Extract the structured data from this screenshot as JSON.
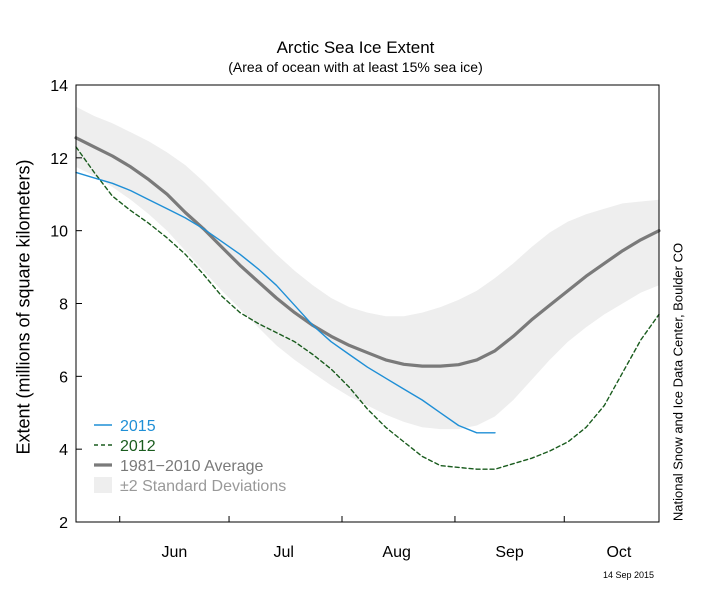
{
  "chart_data": {
    "type": "line",
    "title": "Arctic Sea Ice Extent",
    "subtitle": "(Area of ocean with at least 15% sea ice)",
    "ylabel": "Extent (millions of square kilometers)",
    "xlabel": "",
    "ylim": [
      2,
      14
    ],
    "yticks": [
      2,
      4,
      6,
      8,
      10,
      12,
      14
    ],
    "x_unit": "day of year",
    "xlim": [
      140,
      300
    ],
    "month_labels": [
      {
        "label": "Jun",
        "day": 167
      },
      {
        "label": "Jul",
        "day": 197
      },
      {
        "label": "Aug",
        "day": 228
      },
      {
        "label": "Sep",
        "day": 259
      },
      {
        "label": "Oct",
        "day": 289
      }
    ],
    "month_boundaries": [
      152,
      182,
      213,
      244,
      274
    ],
    "grid": false,
    "legend_position": "bottom-left",
    "series": [
      {
        "name": "2015",
        "style": "solid",
        "color": "#1f8fd6",
        "x": [
          140,
          145,
          150,
          155,
          160,
          165,
          170,
          175,
          180,
          185,
          190,
          195,
          200,
          205,
          210,
          215,
          220,
          225,
          230,
          235,
          240,
          245,
          250,
          252,
          255
        ],
        "y": [
          11.6,
          11.45,
          11.3,
          11.1,
          10.85,
          10.6,
          10.35,
          10.05,
          9.7,
          9.35,
          8.95,
          8.5,
          7.95,
          7.4,
          6.95,
          6.6,
          6.25,
          5.95,
          5.65,
          5.35,
          5.0,
          4.65,
          4.45,
          4.45,
          4.45
        ]
      },
      {
        "name": "2012",
        "style": "dashed",
        "color": "#1a5c1e",
        "x": [
          140,
          145,
          150,
          155,
          160,
          165,
          170,
          175,
          180,
          185,
          190,
          195,
          200,
          205,
          210,
          215,
          220,
          225,
          230,
          235,
          240,
          245,
          250,
          255,
          260,
          265,
          270,
          275,
          280,
          285,
          290,
          295,
          300
        ],
        "y": [
          12.3,
          11.6,
          10.95,
          10.55,
          10.2,
          9.8,
          9.35,
          8.8,
          8.2,
          7.75,
          7.45,
          7.2,
          6.95,
          6.6,
          6.2,
          5.7,
          5.1,
          4.6,
          4.2,
          3.8,
          3.55,
          3.5,
          3.45,
          3.45,
          3.6,
          3.75,
          3.95,
          4.2,
          4.6,
          5.2,
          6.1,
          7.0,
          7.7
        ]
      },
      {
        "name": "1981−2010 Average",
        "style": "solid",
        "color": "#7a7a7a",
        "x": [
          140,
          145,
          150,
          155,
          160,
          165,
          170,
          175,
          180,
          185,
          190,
          195,
          200,
          205,
          210,
          215,
          220,
          225,
          230,
          235,
          240,
          245,
          250,
          255,
          260,
          265,
          270,
          275,
          280,
          285,
          290,
          295,
          300
        ],
        "y": [
          12.55,
          12.3,
          12.05,
          11.75,
          11.4,
          11.0,
          10.5,
          10.05,
          9.55,
          9.05,
          8.6,
          8.15,
          7.75,
          7.4,
          7.1,
          6.85,
          6.65,
          6.45,
          6.33,
          6.28,
          6.28,
          6.32,
          6.45,
          6.7,
          7.1,
          7.55,
          7.95,
          8.35,
          8.75,
          9.1,
          9.45,
          9.75,
          10.0
        ]
      }
    ],
    "band": {
      "name": "±2 Standard Deviations",
      "color": "#eeeeee",
      "x": [
        140,
        145,
        150,
        155,
        160,
        165,
        170,
        175,
        180,
        185,
        190,
        195,
        200,
        205,
        210,
        215,
        220,
        225,
        230,
        235,
        240,
        245,
        250,
        255,
        260,
        265,
        270,
        275,
        280,
        285,
        290,
        295,
        300
      ],
      "upper": [
        13.4,
        13.15,
        12.95,
        12.7,
        12.45,
        12.15,
        11.8,
        11.35,
        10.85,
        10.35,
        9.85,
        9.35,
        8.9,
        8.5,
        8.15,
        7.9,
        7.75,
        7.65,
        7.65,
        7.75,
        7.9,
        8.1,
        8.35,
        8.7,
        9.1,
        9.55,
        9.95,
        10.25,
        10.45,
        10.6,
        10.75,
        10.8,
        10.85
      ],
      "lower": [
        11.75,
        11.5,
        11.2,
        10.85,
        10.45,
        10.0,
        9.45,
        8.9,
        8.35,
        7.85,
        7.35,
        6.85,
        6.45,
        6.1,
        5.75,
        5.45,
        5.2,
        4.95,
        4.75,
        4.6,
        4.55,
        4.55,
        4.65,
        4.9,
        5.35,
        5.9,
        6.45,
        6.95,
        7.35,
        7.7,
        8.0,
        8.3,
        8.5
      ]
    }
  },
  "legend": {
    "items": [
      {
        "label": "2015",
        "color": "#1f8fd6",
        "kind": "line-solid"
      },
      {
        "label": "2012",
        "color": "#1a5c1e",
        "kind": "line-dashed"
      },
      {
        "label": "1981−2010 Average",
        "color": "#7a7a7a",
        "kind": "line-thick"
      },
      {
        "label": "±2 Standard Deviations",
        "color": "#eeeeee",
        "kind": "patch"
      }
    ]
  },
  "credit": "National Snow and Ice Data Center, Boulder CO",
  "date_stamp": "14 Sep 2015"
}
